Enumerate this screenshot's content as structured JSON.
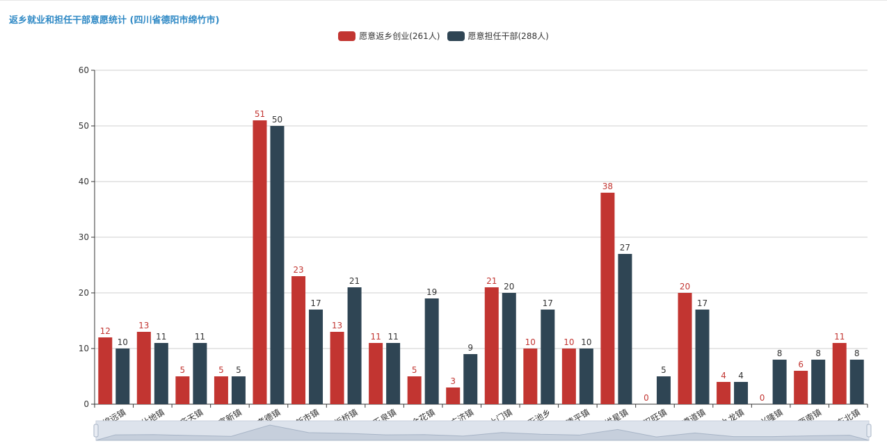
{
  "title": "返乡就业和担任干部意愿统计 (四川省德阳市绵竹市)",
  "legend": [
    {
      "label": "愿意返乡创业(261人)",
      "color": "#c23531"
    },
    {
      "label": "愿意担任干部(288人)",
      "color": "#2f4554"
    }
  ],
  "chart_data": {
    "type": "bar",
    "title": "返乡就业和担任干部意愿统计 (四川省德阳市绵竹市)",
    "categories": [
      "绵远镇",
      "什地镇",
      "齐天镇",
      "富新镇",
      "孝德镇",
      "新市镇",
      "板桥镇",
      "玉泉镇",
      "金花镇",
      "广济镇",
      "土门镇",
      "天池乡",
      "清平镇",
      "拱星镇",
      "汉旺镇",
      "遵道镇",
      "九龙镇",
      "兴隆镇",
      "西南镇",
      "东北镇"
    ],
    "series": [
      {
        "name": "愿意返乡创业(261人)",
        "color": "#c23531",
        "values": [
          12,
          13,
          5,
          5,
          51,
          23,
          13,
          11,
          5,
          3,
          21,
          10,
          10,
          38,
          0,
          20,
          4,
          0,
          6,
          11
        ]
      },
      {
        "name": "愿意担任干部(288人)",
        "color": "#2f4554",
        "values": [
          10,
          11,
          11,
          5,
          50,
          17,
          21,
          11,
          19,
          9,
          20,
          17,
          10,
          27,
          5,
          17,
          4,
          8,
          8,
          8
        ]
      }
    ],
    "yticks": [
      0,
      10,
      20,
      30,
      40,
      50,
      60
    ],
    "ylim": [
      0,
      60
    ],
    "grid": true,
    "legend_position": "top-center",
    "data_labels": true,
    "data_zoom_slider": true
  }
}
